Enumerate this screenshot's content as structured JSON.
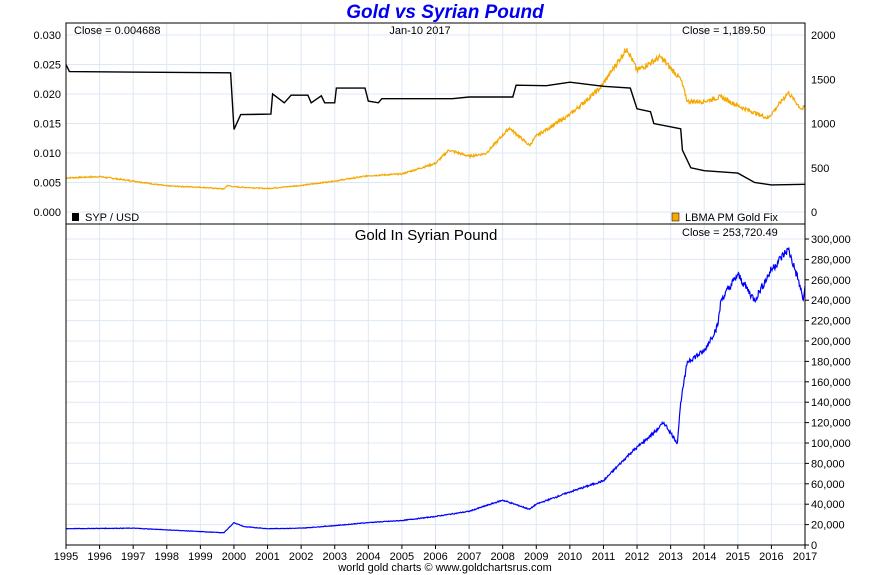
{
  "chart_data": [
    {
      "type": "line",
      "panel": "top",
      "date": "Jan-10  2017",
      "left_close": "Close = 0.004688",
      "right_close": "Close = 1,189.50",
      "left_yticks": [
        "0.000",
        "0.005",
        "0.010",
        "0.015",
        "0.020",
        "0.025",
        "0.030"
      ],
      "ylim_left": [
        0,
        0.03
      ],
      "right_yticks": [
        "0",
        "500",
        "1000",
        "1500",
        "2000"
      ],
      "ylim_right": [
        0,
        2000
      ],
      "series": [
        {
          "name": "SYP / USD",
          "axis": "left",
          "color": "#000000",
          "x": [
            1995,
            1995.1,
            1999.9,
            2000.0,
            2000.2,
            2001.1,
            2001.15,
            2001.5,
            2001.7,
            2002.2,
            2002.3,
            2002.6,
            2002.7,
            2003.0,
            2003.05,
            2003.9,
            2004.0,
            2004.3,
            2004.4,
            2006.5,
            2007.0,
            2008.3,
            2008.4,
            2009.3,
            2010.0,
            2011.0,
            2011.8,
            2012.0,
            2012.4,
            2012.5,
            2013.3,
            2013.35,
            2013.6,
            2014.0,
            2015.0,
            2015.5,
            2016.0,
            2017.0
          ],
          "y": [
            0.025,
            0.0238,
            0.0236,
            0.014,
            0.0165,
            0.0166,
            0.02,
            0.0185,
            0.0198,
            0.0198,
            0.0185,
            0.0197,
            0.0185,
            0.0185,
            0.021,
            0.021,
            0.0188,
            0.0185,
            0.0192,
            0.0192,
            0.0195,
            0.0195,
            0.0215,
            0.0214,
            0.022,
            0.0213,
            0.021,
            0.0175,
            0.017,
            0.015,
            0.0141,
            0.0105,
            0.0075,
            0.007,
            0.0066,
            0.005,
            0.0046,
            0.0047
          ]
        },
        {
          "name": "LBMA PM Gold Fix",
          "axis": "right",
          "color": "#f5a800",
          "x": [
            1995,
            1996,
            1997,
            1998,
            1999,
            1999.7,
            1999.8,
            2000,
            2001,
            2002,
            2003,
            2004,
            2005,
            2006,
            2006.4,
            2007,
            2007.5,
            2008.2,
            2008.8,
            2009,
            2010,
            2010.9,
            2011.7,
            2012,
            2012.7,
            2013.3,
            2013.5,
            2014,
            2014.5,
            2015,
            2015.9,
            2016.5,
            2016.9,
            2017
          ],
          "y": [
            385,
            400,
            350,
            295,
            280,
            260,
            300,
            285,
            265,
            300,
            350,
            410,
            430,
            550,
            700,
            630,
            660,
            950,
            750,
            860,
            1100,
            1400,
            1850,
            1600,
            1750,
            1500,
            1250,
            1250,
            1300,
            1200,
            1060,
            1350,
            1160,
            1190
          ]
        }
      ]
    },
    {
      "type": "line",
      "panel": "bottom",
      "title": "Gold In Syrian Pound",
      "close": "Close = 253,720.49",
      "yticks": [
        "0",
        "20,000",
        "40,000",
        "60,000",
        "80,000",
        "100,000",
        "120,000",
        "140,000",
        "160,000",
        "180,000",
        "200,000",
        "220,000",
        "240,000",
        "260,000",
        "280,000",
        "300,000"
      ],
      "ylim": [
        0,
        300000
      ],
      "series": [
        {
          "name": "Gold In Syrian Pound",
          "color": "#0000ff",
          "x": [
            1995,
            1997,
            1999.7,
            2000,
            2000.3,
            2001,
            2002,
            2003,
            2004,
            2005,
            2006,
            2007,
            2008,
            2008.8,
            2009,
            2010,
            2011,
            2011.8,
            2012.5,
            2012.8,
            2013.2,
            2013.3,
            2013.5,
            2014,
            2014.4,
            2014.5,
            2015,
            2015.5,
            2016,
            2016.5,
            2016.8,
            2016.95,
            2017
          ],
          "y": [
            16000,
            16500,
            12000,
            22000,
            18000,
            16000,
            16500,
            19000,
            22000,
            24000,
            28000,
            33000,
            44000,
            35000,
            40000,
            52000,
            63000,
            90000,
            110000,
            120000,
            100000,
            140000,
            180000,
            190000,
            215000,
            240000,
            265000,
            240000,
            270000,
            290000,
            260000,
            240000,
            253720
          ]
        }
      ]
    }
  ],
  "xticks": [
    "1995",
    "1996",
    "1997",
    "1998",
    "1999",
    "2000",
    "2001",
    "2002",
    "2003",
    "2004",
    "2005",
    "2006",
    "2007",
    "2008",
    "2009",
    "2010",
    "2011",
    "2012",
    "2013",
    "2014",
    "2015",
    "2016",
    "2017"
  ],
  "title": "Gold vs Syrian Pound",
  "footer": "world gold charts © www.goldchartsrus.com",
  "colors": {
    "grid": "#dde8f5",
    "gold": "#f5a800",
    "syp": "#000000",
    "blue": "#0000ff"
  }
}
